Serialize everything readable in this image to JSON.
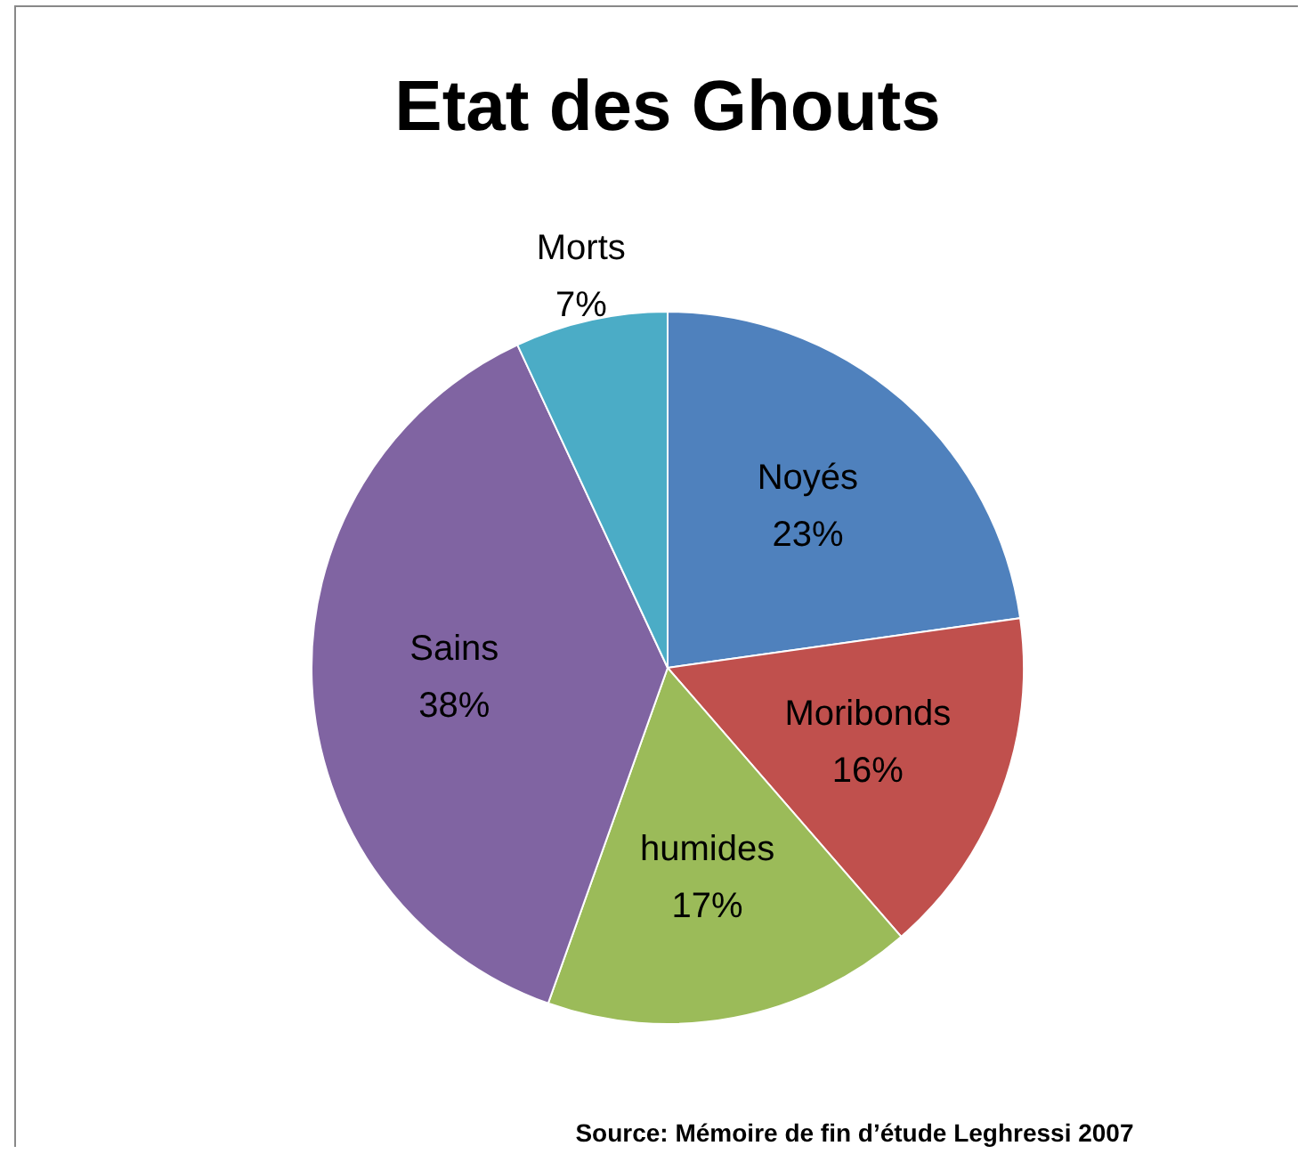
{
  "chart_data": {
    "type": "pie",
    "title": "Etat des Ghouts",
    "categories": [
      "Noyés",
      "Moribonds",
      "humides",
      "Sains",
      "Morts"
    ],
    "values": [
      23,
      16,
      17,
      38,
      7
    ],
    "colors": [
      "#4f81bd",
      "#c0504d",
      "#9bbb59",
      "#8064a2",
      "#4bacc6"
    ],
    "data_labels": true,
    "value_labels": [
      "23%",
      "16%",
      "17%",
      "38%",
      "7%"
    ],
    "annotations": [
      "Source: Mémoire de fin d’étude Leghressi 2007"
    ]
  }
}
